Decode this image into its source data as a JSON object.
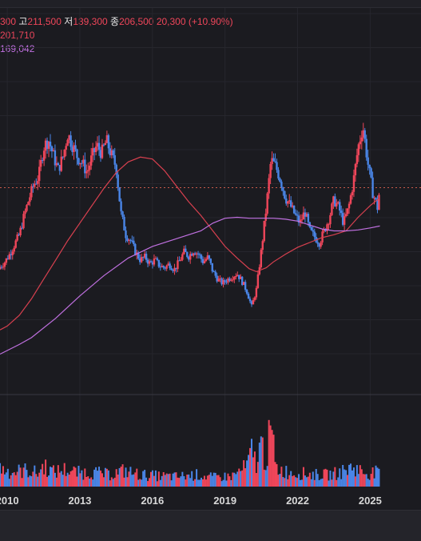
{
  "header": {
    "open_value": "300",
    "high_label": "고",
    "high_value": "211,500",
    "low_label": "저",
    "low_value": "139,300",
    "close_label": "종",
    "close_value": "206,500",
    "change_value": "20,300 (+10.90%)",
    "ma_short_value": "201,710",
    "ma_long_value": "169,042"
  },
  "colors": {
    "up": "#f0465a",
    "down": "#4a86e8",
    "ma_short": "#d8404f",
    "ma_long": "#c070e0",
    "grid": "#26262d",
    "price_line": "#c85a4a",
    "axis_text": "#d8d8d8"
  },
  "chart_data": {
    "type": "candlestick",
    "title": "",
    "xlabel": "",
    "ylabel": "",
    "x_ticks": [
      "2010",
      "2013",
      "2016",
      "2019",
      "2022",
      "2025"
    ],
    "x_range": [
      2009.7,
      2027.1
    ],
    "y_range": [
      0,
      380000
    ],
    "last_price": 206500,
    "series": [
      {
        "name": "price",
        "type": "candlestick",
        "points": [
          [
            2009.7,
            125000
          ],
          [
            2009.9,
            130000
          ],
          [
            2010.1,
            138000
          ],
          [
            2010.3,
            148000
          ],
          [
            2010.5,
            158000
          ],
          [
            2010.7,
            178000
          ],
          [
            2010.9,
            195000
          ],
          [
            2011.1,
            210000
          ],
          [
            2011.3,
            218000
          ],
          [
            2011.5,
            248000
          ],
          [
            2011.7,
            256000
          ],
          [
            2011.9,
            240000
          ],
          [
            2012.1,
            225000
          ],
          [
            2012.3,
            238000
          ],
          [
            2012.5,
            262000
          ],
          [
            2012.7,
            250000
          ],
          [
            2012.9,
            238000
          ],
          [
            2013.1,
            232000
          ],
          [
            2013.3,
            222000
          ],
          [
            2013.5,
            238000
          ],
          [
            2013.7,
            250000
          ],
          [
            2013.9,
            242000
          ],
          [
            2014.1,
            255000
          ],
          [
            2014.3,
            240000
          ],
          [
            2014.5,
            228000
          ],
          [
            2014.7,
            180000
          ],
          [
            2014.9,
            158000
          ],
          [
            2015.1,
            152000
          ],
          [
            2015.3,
            140000
          ],
          [
            2015.5,
            132000
          ],
          [
            2015.7,
            135000
          ],
          [
            2015.9,
            128000
          ],
          [
            2016.1,
            132000
          ],
          [
            2016.3,
            126000
          ],
          [
            2016.5,
            124000
          ],
          [
            2016.7,
            128000
          ],
          [
            2016.9,
            122000
          ],
          [
            2017.1,
            130000
          ],
          [
            2017.3,
            140000
          ],
          [
            2017.5,
            136000
          ],
          [
            2017.7,
            142000
          ],
          [
            2017.9,
            138000
          ],
          [
            2018.1,
            130000
          ],
          [
            2018.3,
            135000
          ],
          [
            2018.5,
            120000
          ],
          [
            2018.7,
            112000
          ],
          [
            2018.9,
            108000
          ],
          [
            2019.1,
            112000
          ],
          [
            2019.3,
            115000
          ],
          [
            2019.5,
            118000
          ],
          [
            2019.7,
            110000
          ],
          [
            2019.9,
            100000
          ],
          [
            2020.1,
            84000
          ],
          [
            2020.3,
            102000
          ],
          [
            2020.5,
            142000
          ],
          [
            2020.7,
            185000
          ],
          [
            2020.9,
            235000
          ],
          [
            2021.1,
            228000
          ],
          [
            2021.3,
            214000
          ],
          [
            2021.5,
            196000
          ],
          [
            2021.7,
            188000
          ],
          [
            2021.9,
            178000
          ],
          [
            2022.1,
            170000
          ],
          [
            2022.3,
            182000
          ],
          [
            2022.5,
            162000
          ],
          [
            2022.7,
            156000
          ],
          [
            2022.9,
            150000
          ],
          [
            2023.1,
            162000
          ],
          [
            2023.3,
            175000
          ],
          [
            2023.5,
            194000
          ],
          [
            2023.7,
            186000
          ],
          [
            2023.9,
            170000
          ],
          [
            2024.1,
            185000
          ],
          [
            2024.3,
            212000
          ],
          [
            2024.5,
            248000
          ],
          [
            2024.7,
            270000
          ],
          [
            2024.9,
            232000
          ],
          [
            2025.1,
            202000
          ],
          [
            2025.3,
            186000
          ],
          [
            2025.4,
            206500
          ]
        ]
      },
      {
        "name": "MA short",
        "type": "line",
        "points": [
          [
            2009.7,
            60000
          ],
          [
            2010.0,
            64000
          ],
          [
            2010.5,
            75000
          ],
          [
            2011.0,
            92000
          ],
          [
            2011.5,
            112000
          ],
          [
            2012.0,
            132000
          ],
          [
            2012.5,
            152000
          ],
          [
            2013.0,
            170000
          ],
          [
            2013.5,
            188000
          ],
          [
            2014.0,
            206000
          ],
          [
            2014.5,
            222000
          ],
          [
            2015.0,
            233000
          ],
          [
            2015.5,
            238000
          ],
          [
            2016.0,
            236000
          ],
          [
            2016.5,
            224000
          ],
          [
            2017.0,
            208000
          ],
          [
            2017.5,
            192000
          ],
          [
            2018.0,
            178000
          ],
          [
            2018.5,
            162000
          ],
          [
            2019.0,
            146000
          ],
          [
            2019.5,
            134000
          ],
          [
            2020.0,
            123000
          ],
          [
            2020.3,
            120000
          ],
          [
            2020.7,
            124000
          ],
          [
            2021.0,
            130000
          ],
          [
            2021.5,
            138000
          ],
          [
            2022.0,
            145000
          ],
          [
            2022.5,
            150000
          ],
          [
            2023.0,
            155000
          ],
          [
            2023.5,
            158000
          ],
          [
            2024.0,
            162000
          ],
          [
            2024.5,
            176000
          ],
          [
            2025.0,
            188000
          ],
          [
            2025.4,
            196000
          ]
        ]
      },
      {
        "name": "MA long",
        "type": "line",
        "points": [
          [
            2009.7,
            35000
          ],
          [
            2010.5,
            45000
          ],
          [
            2011.0,
            52000
          ],
          [
            2012.0,
            72000
          ],
          [
            2013.0,
            95000
          ],
          [
            2014.0,
            116000
          ],
          [
            2015.0,
            134000
          ],
          [
            2016.0,
            146000
          ],
          [
            2017.0,
            154000
          ],
          [
            2018.0,
            162000
          ],
          [
            2018.5,
            170000
          ],
          [
            2019.0,
            175000
          ],
          [
            2019.5,
            176000
          ],
          [
            2020.0,
            175000
          ],
          [
            2021.0,
            175000
          ],
          [
            2021.5,
            174000
          ],
          [
            2022.0,
            172000
          ],
          [
            2022.5,
            168000
          ],
          [
            2023.0,
            164000
          ],
          [
            2023.5,
            162000
          ],
          [
            2024.0,
            162000
          ],
          [
            2024.5,
            163000
          ],
          [
            2025.0,
            165000
          ],
          [
            2025.4,
            167000
          ]
        ]
      },
      {
        "name": "volume",
        "type": "bar",
        "points": [
          [
            2009.7,
            0.28
          ],
          [
            2010.2,
            0.22
          ],
          [
            2010.8,
            0.25
          ],
          [
            2011.3,
            0.2
          ],
          [
            2011.5,
            0.33
          ],
          [
            2011.9,
            0.22
          ],
          [
            2012.4,
            0.26
          ],
          [
            2012.9,
            0.21
          ],
          [
            2013.5,
            0.22
          ],
          [
            2014.2,
            0.18
          ],
          [
            2014.8,
            0.24
          ],
          [
            2015.5,
            0.18
          ],
          [
            2016.3,
            0.16
          ],
          [
            2017.0,
            0.15
          ],
          [
            2017.8,
            0.18
          ],
          [
            2018.5,
            0.14
          ],
          [
            2019.3,
            0.16
          ],
          [
            2019.9,
            0.3
          ],
          [
            2020.1,
            0.52
          ],
          [
            2020.3,
            0.36
          ],
          [
            2020.5,
            0.64
          ],
          [
            2020.7,
            0.4
          ],
          [
            2020.9,
            0.88
          ],
          [
            2021.1,
            0.28
          ],
          [
            2021.6,
            0.22
          ],
          [
            2022.2,
            0.2
          ],
          [
            2022.8,
            0.18
          ],
          [
            2023.3,
            0.18
          ],
          [
            2023.8,
            0.22
          ],
          [
            2024.3,
            0.3
          ],
          [
            2024.6,
            0.24
          ],
          [
            2024.9,
            0.2
          ],
          [
            2025.2,
            0.22
          ],
          [
            2025.4,
            0.18
          ]
        ]
      }
    ]
  }
}
